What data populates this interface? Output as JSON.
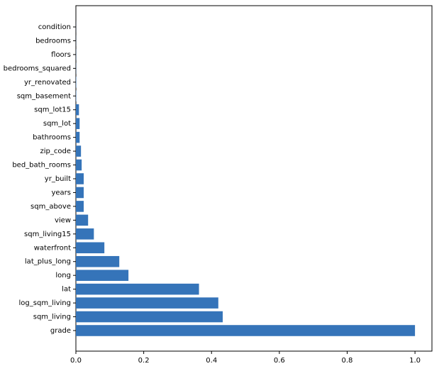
{
  "chart_data": {
    "type": "barh",
    "categories": [
      "condition",
      "bedrooms",
      "floors",
      "bedrooms_squared",
      "yr_renovated",
      "sqm_basement",
      "sqm_lot15",
      "sqm_lot",
      "bathrooms",
      "zip_code",
      "bed_bath_rooms",
      "yr_built",
      "years",
      "sqm_above",
      "view",
      "sqm_living15",
      "waterfront",
      "lat_plus_long",
      "long",
      "lat",
      "log_sqm_living",
      "sqm_living",
      "grade"
    ],
    "values": [
      0.0002,
      0.0003,
      0.0005,
      0.0005,
      0.001,
      0.001,
      0.009,
      0.011,
      0.011,
      0.015,
      0.017,
      0.023,
      0.023,
      0.023,
      0.036,
      0.053,
      0.084,
      0.128,
      0.155,
      0.363,
      0.42,
      0.433,
      1.0
    ],
    "color": "#3574b9",
    "xlim": [
      0,
      1.05
    ],
    "xticks": [
      {
        "value": 0,
        "label": "0.0"
      },
      0.2,
      0.4,
      0.6,
      0.8,
      {
        "value": 1,
        "label": "1.0"
      }
    ],
    "grid": false
  }
}
